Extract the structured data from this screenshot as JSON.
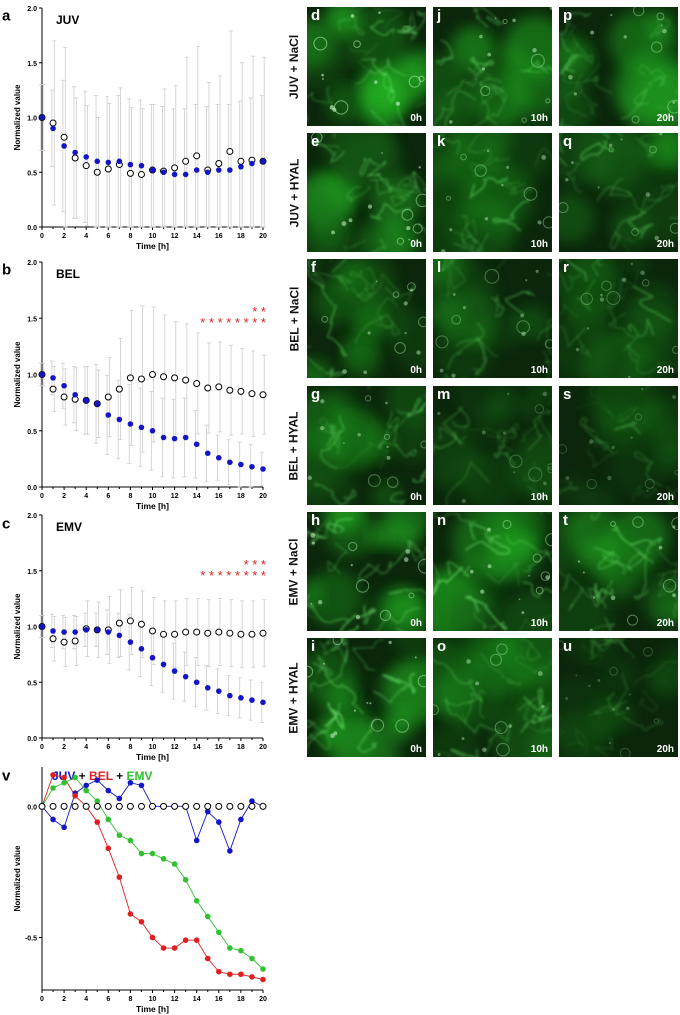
{
  "colors": {
    "juv": "#1515c8",
    "bel": "#e02020",
    "emv": "#30c030",
    "ctrl": "#000000",
    "star": "#e02020",
    "err": "#cccccc"
  },
  "panels": [
    {
      "letter": "a",
      "title": "JUV",
      "ylabel": "Normalized value",
      "xlabel": "Time [h]",
      "xticks": [
        "0",
        "2",
        "4",
        "6",
        "8",
        "10",
        "12",
        "14",
        "16",
        "18",
        "20"
      ],
      "yticks": [
        "0.0",
        "0.5",
        "1.0",
        "1.5",
        "2.0"
      ],
      "stars_top": "",
      "stars_bottom": ""
    },
    {
      "letter": "b",
      "title": "BEL",
      "ylabel": "Normalized value",
      "xlabel": "Time [h]",
      "xticks": [
        "0",
        "2",
        "4",
        "6",
        "8",
        "10",
        "12",
        "14",
        "16",
        "18",
        "20"
      ],
      "yticks": [
        "0.0",
        "0.5",
        "1.0",
        "1.5",
        "2.0"
      ],
      "stars_top": "* *",
      "stars_bottom": "* * * * * * * *"
    },
    {
      "letter": "c",
      "title": "EMV",
      "ylabel": "Normalized value",
      "xlabel": "Time [h]",
      "xticks": [
        "0",
        "2",
        "4",
        "6",
        "8",
        "10",
        "12",
        "14",
        "16",
        "18",
        "20"
      ],
      "yticks": [
        "0.0",
        "0.5",
        "1.0",
        "1.5",
        "2.0"
      ],
      "stars_top": "* * *",
      "stars_bottom": "* * * * * * * *"
    },
    {
      "letter": "v",
      "title_juv": "JUV",
      "title_plus1": " + ",
      "title_bel": "BEL",
      "title_plus2": " + ",
      "title_emv": "EMV",
      "ylabel": "Normalized value",
      "xlabel": "Time [h]",
      "xticks": [
        "0",
        "2",
        "4",
        "6",
        "8",
        "10",
        "12",
        "14",
        "16",
        "18",
        "20"
      ],
      "yticks": [
        "0.0",
        "-0.5"
      ]
    }
  ],
  "chart_data": [
    {
      "type": "scatter",
      "panel": "a",
      "title": "JUV",
      "xlabel": "Time [h]",
      "ylabel": "Normalized value",
      "xlim": [
        0,
        20
      ],
      "ylim": [
        0,
        2
      ],
      "x": [
        0,
        1,
        2,
        3,
        4,
        5,
        6,
        7,
        8,
        9,
        10,
        11,
        12,
        13,
        14,
        15,
        16,
        17,
        18,
        19,
        20
      ],
      "series": [
        {
          "style": "filled",
          "color": "#1515c8",
          "values": [
            1.0,
            0.9,
            0.74,
            0.68,
            0.64,
            0.6,
            0.59,
            0.6,
            0.57,
            0.56,
            0.52,
            0.5,
            0.48,
            0.48,
            0.52,
            0.5,
            0.52,
            0.52,
            0.55,
            0.58,
            0.6
          ],
          "err": [
            0.3,
            0.35,
            0.6,
            0.6,
            0.6,
            0.6,
            0.6,
            0.6,
            0.6,
            0.6,
            0.6,
            0.6,
            0.6,
            0.6,
            0.6,
            0.6,
            0.6,
            0.6,
            0.6,
            0.6,
            0.6
          ]
        },
        {
          "style": "open",
          "color": "#000000",
          "values": [
            1.0,
            0.95,
            0.82,
            0.63,
            0.56,
            0.5,
            0.53,
            0.57,
            0.49,
            0.48,
            0.52,
            0.51,
            0.54,
            0.6,
            0.65,
            0.52,
            0.58,
            0.69,
            0.6,
            0.61,
            0.6
          ],
          "err": [
            0.3,
            0.75,
            0.82,
            0.55,
            0.55,
            0.5,
            0.6,
            0.7,
            0.6,
            0.6,
            0.6,
            0.75,
            0.75,
            0.95,
            1.0,
            0.8,
            0.8,
            1.1,
            0.9,
            0.95,
            0.95
          ]
        }
      ]
    },
    {
      "type": "scatter",
      "panel": "b",
      "title": "BEL",
      "xlabel": "Time [h]",
      "ylabel": "Normalized value",
      "xlim": [
        0,
        20
      ],
      "ylim": [
        0,
        2
      ],
      "x": [
        0,
        1,
        2,
        3,
        4,
        5,
        6,
        7,
        8,
        9,
        10,
        11,
        12,
        13,
        14,
        15,
        16,
        17,
        18,
        19,
        20
      ],
      "series": [
        {
          "style": "filled",
          "color": "#1515c8",
          "values": [
            1.0,
            0.97,
            0.9,
            0.82,
            0.77,
            0.74,
            0.64,
            0.6,
            0.56,
            0.53,
            0.5,
            0.44,
            0.43,
            0.44,
            0.38,
            0.3,
            0.26,
            0.22,
            0.2,
            0.18,
            0.16
          ],
          "err": [
            0.1,
            0.15,
            0.2,
            0.25,
            0.3,
            0.35,
            0.35,
            0.35,
            0.35,
            0.35,
            0.35,
            0.35,
            0.35,
            0.35,
            0.3,
            0.25,
            0.2,
            0.2,
            0.2,
            0.2,
            0.15
          ]
        },
        {
          "style": "open",
          "color": "#000000",
          "values": [
            1.0,
            0.87,
            0.8,
            0.78,
            0.77,
            0.74,
            0.8,
            0.87,
            0.97,
            0.96,
            1.0,
            0.98,
            0.97,
            0.95,
            0.92,
            0.88,
            0.89,
            0.86,
            0.85,
            0.83,
            0.82
          ],
          "err": [
            0.1,
            0.2,
            0.25,
            0.28,
            0.3,
            0.3,
            0.35,
            0.45,
            0.6,
            0.65,
            0.6,
            0.55,
            0.5,
            0.5,
            0.45,
            0.4,
            0.4,
            0.4,
            0.38,
            0.38,
            0.35
          ]
        }
      ],
      "significance_rows": [
        {
          "marker": "* *",
          "x_start": 19,
          "x_end": 20
        },
        {
          "marker": "*",
          "x_start": 13,
          "x_end": 20
        }
      ]
    },
    {
      "type": "scatter",
      "panel": "c",
      "title": "EMV",
      "xlabel": "Time [h]",
      "ylabel": "Normalized value",
      "xlim": [
        0,
        20
      ],
      "ylim": [
        0,
        2
      ],
      "x": [
        0,
        1,
        2,
        3,
        4,
        5,
        6,
        7,
        8,
        9,
        10,
        11,
        12,
        13,
        14,
        15,
        16,
        17,
        18,
        19,
        20
      ],
      "series": [
        {
          "style": "filled",
          "color": "#1515c8",
          "values": [
            1.0,
            0.96,
            0.95,
            0.95,
            0.97,
            0.97,
            0.95,
            0.92,
            0.86,
            0.8,
            0.72,
            0.66,
            0.6,
            0.55,
            0.5,
            0.45,
            0.42,
            0.38,
            0.36,
            0.34,
            0.32
          ],
          "err": [
            0.1,
            0.15,
            0.15,
            0.15,
            0.15,
            0.15,
            0.2,
            0.2,
            0.25,
            0.25,
            0.25,
            0.25,
            0.25,
            0.22,
            0.22,
            0.2,
            0.2,
            0.18,
            0.18,
            0.18,
            0.18
          ]
        },
        {
          "style": "open",
          "color": "#000000",
          "values": [
            1.0,
            0.89,
            0.86,
            0.87,
            0.98,
            0.97,
            0.97,
            1.03,
            1.05,
            1.02,
            0.96,
            0.93,
            0.93,
            0.95,
            0.95,
            0.94,
            0.95,
            0.94,
            0.93,
            0.93,
            0.94
          ],
          "err": [
            0.1,
            0.2,
            0.22,
            0.22,
            0.25,
            0.25,
            0.3,
            0.3,
            0.3,
            0.3,
            0.3,
            0.3,
            0.3,
            0.3,
            0.3,
            0.3,
            0.3,
            0.3,
            0.3,
            0.3,
            0.3
          ]
        }
      ],
      "significance_rows": [
        {
          "marker": "* * *",
          "x_start": 18,
          "x_end": 20
        },
        {
          "marker": "*",
          "x_start": 13,
          "x_end": 20
        }
      ]
    },
    {
      "type": "line",
      "panel": "v",
      "xlabel": "Time [h]",
      "ylabel": "Normalized value",
      "xlim": [
        0,
        20
      ],
      "ylim": [
        -0.7,
        0.15
      ],
      "x": [
        0,
        1,
        2,
        3,
        4,
        5,
        6,
        7,
        8,
        9,
        10,
        11,
        12,
        13,
        14,
        15,
        16,
        17,
        18,
        19,
        20
      ],
      "series": [
        {
          "name": "JUV",
          "style": "filled",
          "color": "#1515c8",
          "values": [
            0.0,
            -0.05,
            -0.08,
            0.05,
            0.08,
            0.1,
            0.06,
            0.03,
            0.09,
            0.08,
            0.0,
            0.0,
            0.0,
            0.0,
            -0.13,
            -0.02,
            -0.06,
            -0.17,
            -0.05,
            0.02,
            0.0
          ]
        },
        {
          "name": "BEL",
          "style": "filled",
          "color": "#e02020",
          "values": [
            0.0,
            0.12,
            0.11,
            0.04,
            0.0,
            -0.06,
            -0.16,
            -0.27,
            -0.41,
            -0.44,
            -0.5,
            -0.54,
            -0.54,
            -0.51,
            -0.51,
            -0.58,
            -0.63,
            -0.64,
            -0.64,
            -0.65,
            -0.66
          ]
        },
        {
          "name": "EMV",
          "style": "filled",
          "color": "#30c030",
          "values": [
            0.0,
            0.07,
            0.09,
            0.11,
            0.06,
            0.02,
            -0.05,
            -0.11,
            -0.13,
            -0.18,
            -0.18,
            -0.2,
            -0.22,
            -0.28,
            -0.36,
            -0.42,
            -0.48,
            -0.54,
            -0.55,
            -0.58,
            -0.62
          ]
        },
        {
          "name": "control",
          "style": "open",
          "color": "#000000",
          "values": [
            0,
            0,
            0,
            0,
            0,
            0,
            0,
            0,
            0,
            0,
            0,
            0,
            0,
            0,
            0,
            0,
            0,
            0,
            0,
            0,
            0
          ]
        }
      ]
    }
  ],
  "rows": [
    {
      "label": "JUV + NaCl",
      "cells": [
        {
          "letter": "d",
          "time": "0h",
          "seed": 11,
          "bright": 1.0
        },
        {
          "letter": "j",
          "time": "10h",
          "seed": 23,
          "bright": 0.8
        },
        {
          "letter": "p",
          "time": "20h",
          "seed": 37,
          "bright": 0.75
        }
      ]
    },
    {
      "label": "JUV + HYAL",
      "cells": [
        {
          "letter": "e",
          "time": "0h",
          "seed": 41,
          "bright": 0.9
        },
        {
          "letter": "k",
          "time": "10h",
          "seed": 53,
          "bright": 0.7
        },
        {
          "letter": "q",
          "time": "20h",
          "seed": 67,
          "bright": 0.65
        }
      ]
    },
    {
      "label": "BEL + NaCl",
      "cells": [
        {
          "letter": "f",
          "time": "0h",
          "seed": 71,
          "bright": 0.75
        },
        {
          "letter": "l",
          "time": "10h",
          "seed": 83,
          "bright": 0.65
        },
        {
          "letter": "r",
          "time": "20h",
          "seed": 97,
          "bright": 0.55
        }
      ]
    },
    {
      "label": "BEL + HYAL",
      "cells": [
        {
          "letter": "g",
          "time": "0h",
          "seed": 101,
          "bright": 0.7
        },
        {
          "letter": "m",
          "time": "10h",
          "seed": 113,
          "bright": 0.45
        },
        {
          "letter": "s",
          "time": "20h",
          "seed": 127,
          "bright": 0.4
        }
      ]
    },
    {
      "label": "EMV + NaCl",
      "cells": [
        {
          "letter": "h",
          "time": "0h",
          "seed": 131,
          "bright": 0.85
        },
        {
          "letter": "n",
          "time": "10h",
          "seed": 149,
          "bright": 0.85
        },
        {
          "letter": "t",
          "time": "20h",
          "seed": 151,
          "bright": 0.8
        }
      ]
    },
    {
      "label": "EMV + HYAL",
      "cells": [
        {
          "letter": "i",
          "time": "0h",
          "seed": 163,
          "bright": 0.9
        },
        {
          "letter": "o",
          "time": "10h",
          "seed": 173,
          "bright": 0.7
        },
        {
          "letter": "u",
          "time": "20h",
          "seed": 181,
          "bright": 0.4
        }
      ]
    }
  ]
}
